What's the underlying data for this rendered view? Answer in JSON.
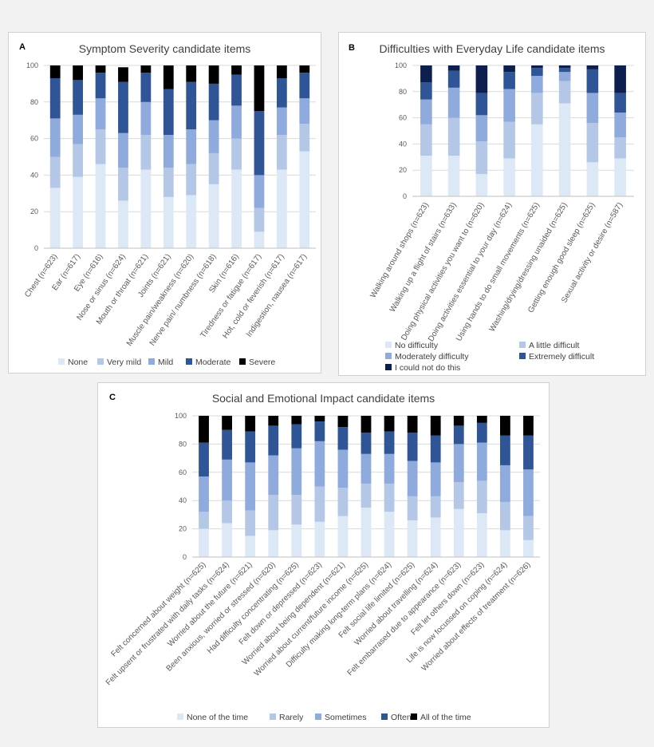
{
  "chart_data": [
    {
      "panel_label": "A",
      "type": "bar",
      "stacked": true,
      "title": "Symptom Severity candidate items",
      "categories": [
        "Chest (n=623)",
        "Ear (n=617)",
        "Eye (n=616)",
        "Nose or sinus (n=624)",
        "Mouth or throat (n=621)",
        "Joints (n=621)",
        "Muscle pain/weakness (n=620)",
        "Nerve pain/ numbness (n=618)",
        "Skin (n=616)",
        "Tiredness or fatigue (n=617)",
        "Hot, cold or feverish (n=617)",
        "Indigestion, nausea (n=617)"
      ],
      "series": [
        {
          "name": "None",
          "values": [
            33,
            39,
            46,
            26,
            43,
            28,
            29,
            35,
            43,
            9,
            43,
            53
          ],
          "color": "#dde8f6"
        },
        {
          "name": "Very mild",
          "values": [
            17,
            18,
            19,
            18,
            19,
            16,
            17,
            17,
            17,
            13,
            19,
            15
          ],
          "color": "#b4c7e7"
        },
        {
          "name": "Mild",
          "values": [
            21,
            16,
            17,
            19,
            18,
            18,
            19,
            18,
            18,
            18,
            15,
            14
          ],
          "color": "#8faadc"
        },
        {
          "name": "Moderate",
          "values": [
            22,
            19,
            14,
            28,
            16,
            25,
            26,
            20,
            17,
            35,
            16,
            14
          ],
          "color": "#2f5597"
        },
        {
          "name": "Severe",
          "values": [
            7,
            8,
            4,
            8,
            4,
            13,
            9,
            10,
            5,
            25,
            7,
            4
          ],
          "color": "#000000"
        }
      ],
      "ylim": [
        0,
        100
      ],
      "yticks": [
        "0",
        "20",
        "40",
        "60",
        "80",
        "100"
      ],
      "legend_position": "bottom"
    },
    {
      "panel_label": "B",
      "type": "bar",
      "stacked": true,
      "title": "Difficulties with Everyday Life candidate items",
      "categories": [
        "Walking around shops (n=623)",
        "Walking up a flight of stairs (n=633)",
        "Doing physical activities you want to (n=620)",
        "Doing activities essential to your day (n=624)",
        "Using hands to do small movements (n=625)",
        "Washing/drying/dressing unaided (n=625)",
        "Getting enough good sleep (n=625)",
        "Sexual activity or desire (n=587)"
      ],
      "series": [
        {
          "name": "No difficulty",
          "values": [
            31,
            31,
            17,
            29,
            55,
            71,
            26,
            29
          ],
          "color": "#dde8f6"
        },
        {
          "name": "A little difficult",
          "values": [
            24,
            29,
            25,
            28,
            24,
            17,
            30,
            16
          ],
          "color": "#b4c7e7"
        },
        {
          "name": "Moderately difficulty",
          "values": [
            19,
            23,
            20,
            25,
            13,
            7,
            23,
            19
          ],
          "color": "#8faadc"
        },
        {
          "name": "Extremely difficult",
          "values": [
            13,
            13,
            17,
            13,
            6,
            3,
            18,
            15
          ],
          "color": "#2f5597"
        },
        {
          "name": "I could not do this",
          "values": [
            13,
            4,
            21,
            5,
            2,
            2,
            3,
            21
          ],
          "color": "#0d1f4f"
        }
      ],
      "ylim": [
        0,
        100
      ],
      "yticks": [
        "0",
        "20",
        "40",
        "60",
        "80",
        "100"
      ],
      "legend_position": "bottom"
    },
    {
      "panel_label": "C",
      "type": "bar",
      "stacked": true,
      "title": "Social and Emotional Impact candidate items",
      "categories": [
        "Felt concerned about weight (n=625)",
        "Felt upsent or frustrated with daily tasks (n=624)",
        "Worried about the future (n=621)",
        "Been anxious, worried or stressed (n=620)",
        "Had difficulty concentrating (n=625)",
        "Felt down or depressed (n=623)",
        "Worried about being dependent (n=621)",
        "Worried about current/future income (n=625)",
        "Difficulty making long-term plans (n=624)",
        "Felt social life limited (n=625)",
        "Worried about travelling (n=624)",
        "Felt embarrased due to appearance (n=623)",
        "Felt let others down (n=623)",
        "Life is now focussed on coping (n=624)",
        "Worried about effects of treatment (n=626)"
      ],
      "series": [
        {
          "name": "None of the time",
          "values": [
            20,
            24,
            15,
            19,
            23,
            25,
            29,
            35,
            32,
            26,
            28,
            34,
            31,
            19,
            12
          ],
          "color": "#dde8f6"
        },
        {
          "name": "Rarely",
          "values": [
            12,
            16,
            18,
            25,
            21,
            25,
            20,
            17,
            20,
            17,
            15,
            19,
            23,
            20,
            17
          ],
          "color": "#b4c7e7"
        },
        {
          "name": "Sometimes",
          "values": [
            25,
            29,
            34,
            28,
            33,
            32,
            27,
            21,
            21,
            25,
            24,
            27,
            27,
            26,
            33
          ],
          "color": "#8faadc"
        },
        {
          "name": "Often",
          "values": [
            24,
            21,
            22,
            21,
            17,
            14,
            16,
            15,
            16,
            20,
            19,
            13,
            14,
            21,
            24
          ],
          "color": "#2f5597"
        },
        {
          "name": "All of the time",
          "values": [
            19,
            10,
            11,
            7,
            6,
            4,
            8,
            12,
            11,
            12,
            14,
            7,
            5,
            14,
            14
          ],
          "color": "#000000"
        }
      ],
      "ylim": [
        0,
        100
      ],
      "yticks": [
        "0",
        "20",
        "40",
        "60",
        "80",
        "100"
      ],
      "legend_position": "bottom"
    }
  ]
}
